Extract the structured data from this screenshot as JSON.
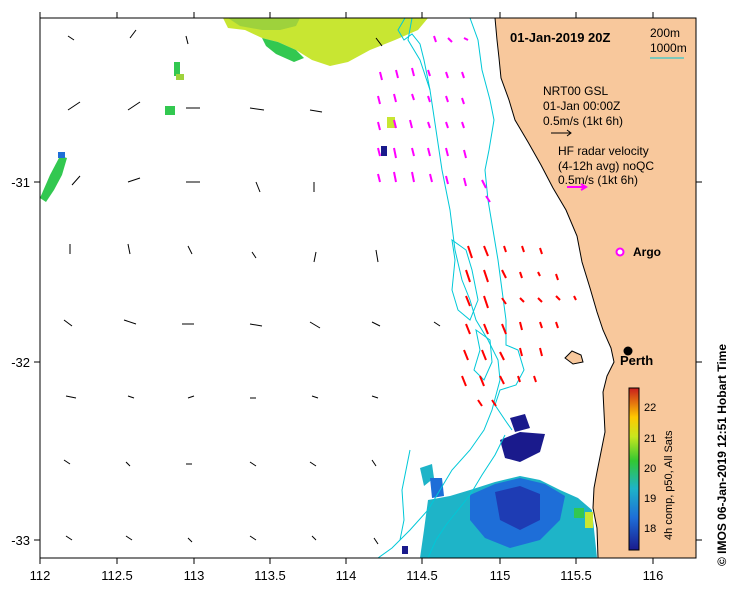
{
  "map": {
    "title": "01-Jan-2019 20Z",
    "legend_depths": [
      "200m",
      "1000m"
    ],
    "model_legend": [
      "NRT00 GSL",
      "01-Jan 00:00Z",
      "0.5m/s (1kt 6h)"
    ],
    "radar_legend": [
      "HF radar velocity",
      "(4-12h avg) noQC",
      "0.5m/s (1kt 6h)"
    ],
    "argo_label": "Argo",
    "city_label": "Perth",
    "colorbar_label": "4h comp, p50, All Sats",
    "colorbar_ticks": [
      "18",
      "19",
      "20",
      "21",
      "22"
    ],
    "footer": "© IMOS 06-Jan-2019 12:51 Hobart Time",
    "x_ticks": [
      "112",
      "112.5",
      "113",
      "113.5",
      "114",
      "114.5",
      "115",
      "115.5",
      "116"
    ],
    "y_ticks": [
      "-31",
      "-32",
      "-33"
    ],
    "colors": {
      "land": "#f8c89c",
      "isobath": "#00c8d8",
      "radar": "#ff00ff",
      "radar_south": "#ff0000",
      "model": "#000000"
    },
    "icons": [
      "argo-float-icon",
      "city-dot-icon"
    ]
  }
}
